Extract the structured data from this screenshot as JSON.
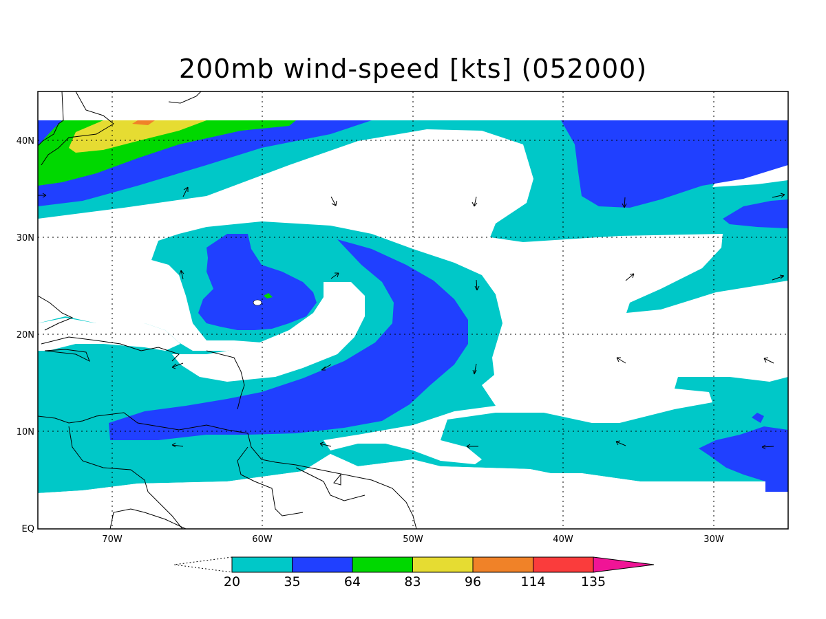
{
  "title": "200mb wind-speed [kts] (052000)",
  "map": {
    "lon_ticks": [
      "70W",
      "60W",
      "50W",
      "40W",
      "30W"
    ],
    "lat_ticks": [
      "40N",
      "30N",
      "20N",
      "10N",
      "EQ"
    ],
    "grid": "dotted"
  },
  "colorbar": {
    "labels": [
      "20",
      "35",
      "64",
      "83",
      "96",
      "114",
      "135"
    ],
    "colors": [
      "#00c8c8",
      "#2040ff",
      "#00d800",
      "#e6dc32",
      "#f08228",
      "#fa3c3c",
      "#f01496"
    ],
    "below_color": "#ffffff"
  },
  "colors": {
    "cyan": "#00c8c8",
    "blue": "#2040ff",
    "green": "#00d800",
    "yellow": "#e6dc32",
    "orange": "#f08228"
  }
}
